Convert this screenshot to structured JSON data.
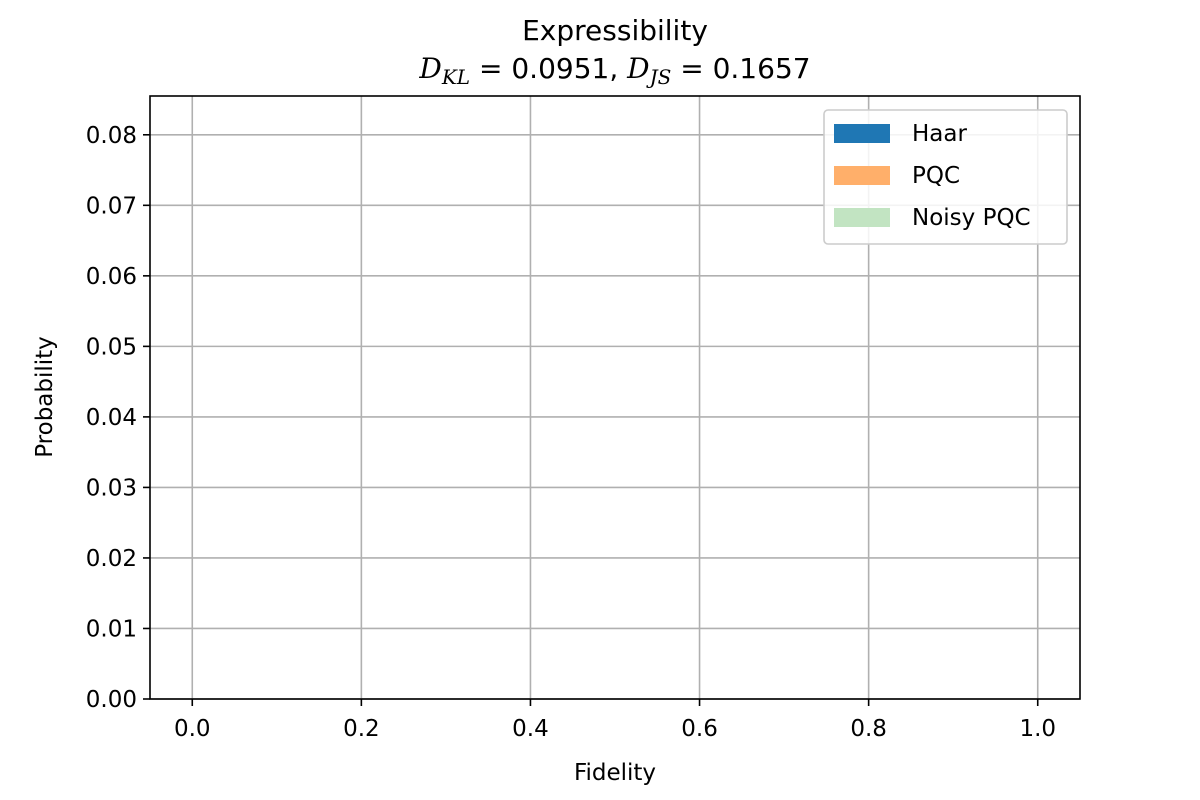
{
  "chart_data": {
    "type": "bar",
    "title": "Expressibility",
    "subtitle_parts": {
      "dkl_symbol": "D",
      "dkl_sub": "KL",
      "dkl_value": "0.0951",
      "djs_symbol": "D",
      "djs_sub": "JS",
      "djs_value": "0.1657"
    },
    "xlabel": "Fidelity",
    "ylabel": "Probability",
    "xlim": [
      -0.05,
      1.05
    ],
    "ylim": [
      0.0,
      0.0855
    ],
    "xticks": [
      0.0,
      0.2,
      0.4,
      0.6,
      0.8,
      1.0
    ],
    "xtick_labels": [
      "0.0",
      "0.2",
      "0.4",
      "0.6",
      "0.8",
      "1.0"
    ],
    "yticks": [
      0.0,
      0.01,
      0.02,
      0.03,
      0.04,
      0.05,
      0.06,
      0.07,
      0.08
    ],
    "ytick_labels": [
      "0.00",
      "0.01",
      "0.02",
      "0.03",
      "0.04",
      "0.05",
      "0.06",
      "0.07",
      "0.08"
    ],
    "grid": true,
    "legend_position": "top-right",
    "series": [
      {
        "name": "Haar",
        "color": "#1f77b4",
        "values": []
      },
      {
        "name": "PQC",
        "color": "#ffaf6a",
        "values": []
      },
      {
        "name": "Noisy PQC",
        "color": "#c2e4c2",
        "values": []
      }
    ]
  }
}
